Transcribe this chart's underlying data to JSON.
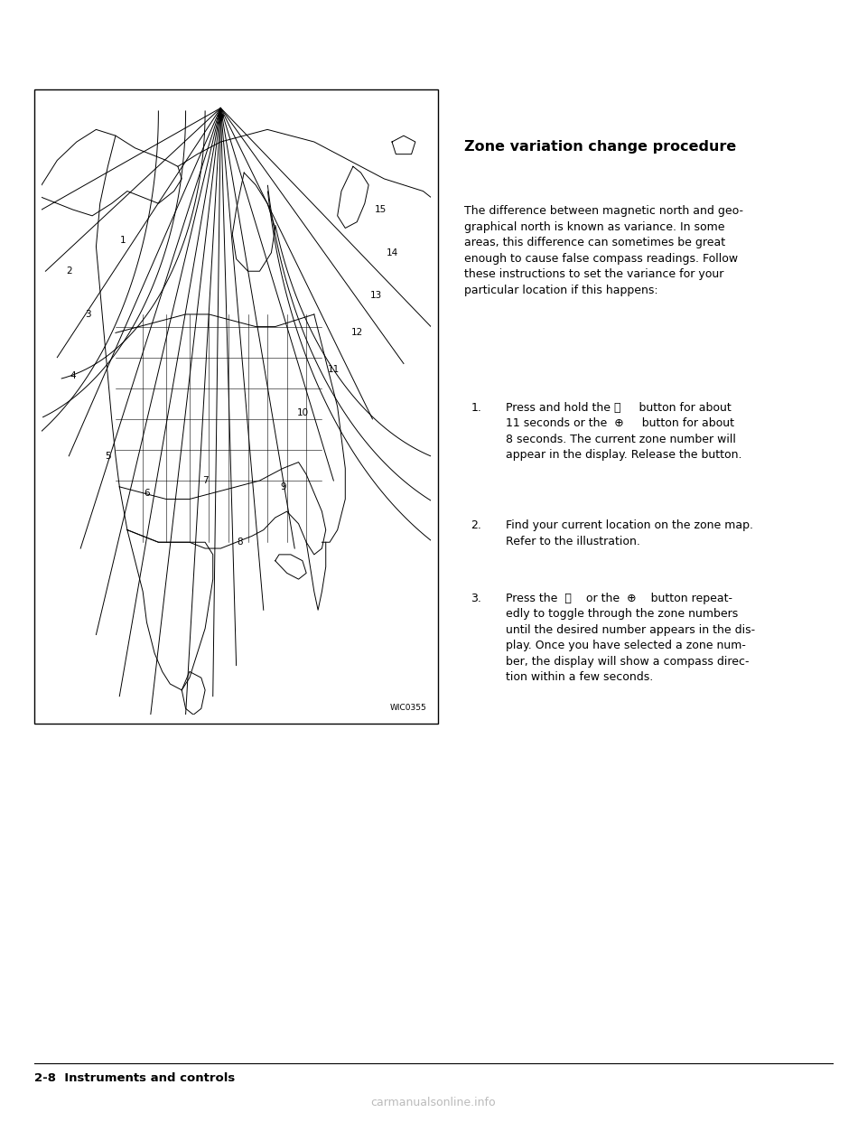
{
  "bg_color": "#ffffff",
  "title": "Zone variation change procedure",
  "title_fontsize": 11.5,
  "body_fontsize": 9.0,
  "footer_left": "2-8  Instruments and controls",
  "watermark": "WIC0355",
  "intro_text": "The difference between magnetic north and geo-\ngraphical north is known as variance. In some\nareas, this difference can sometimes be great\nenough to cause false compass readings. Follow\nthese instructions to set the variance for your\nparticular location if this happens:",
  "step1": "Press and hold the ⏻     button for about\n11 seconds or the  ⊕     button for about\n8 seconds. The current zone number will\nappear in the display. Release the button.",
  "step2": "Find your current location on the zone map.\nRefer to the illustration.",
  "step3": "Press the  ⏻    or the  ⊕    button repeat-\nedly to toggle through the zone numbers\nuntil the desired number appears in the dis-\nplay. Once you have selected a zone num-\nber, the display will show a compass direc-\ntion within a few seconds."
}
